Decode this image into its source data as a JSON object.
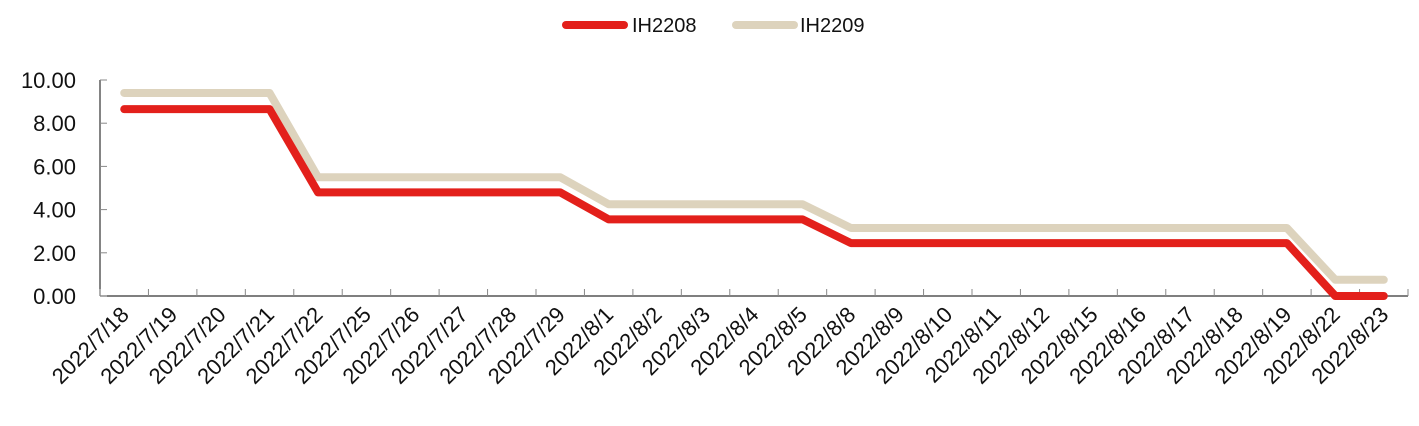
{
  "chart_data": {
    "type": "line",
    "title": "",
    "xlabel": "",
    "ylabel": "",
    "ylim": [
      0,
      10
    ],
    "yticks": [
      "0.00",
      "2.00",
      "4.00",
      "6.00",
      "8.00",
      "10.00"
    ],
    "grid": false,
    "legend_position": "top-center",
    "categories": [
      "2022/7/18",
      "2022/7/19",
      "2022/7/20",
      "2022/7/21",
      "2022/7/22",
      "2022/7/25",
      "2022/7/26",
      "2022/7/27",
      "2022/7/28",
      "2022/7/29",
      "2022/8/1",
      "2022/8/2",
      "2022/8/3",
      "2022/8/4",
      "2022/8/5",
      "2022/8/8",
      "2022/8/9",
      "2022/8/10",
      "2022/8/11",
      "2022/8/12",
      "2022/8/15",
      "2022/8/16",
      "2022/8/17",
      "2022/8/18",
      "2022/8/19",
      "2022/8/22",
      "2022/8/23"
    ],
    "series": [
      {
        "name": "IH2208",
        "color": "#e3201b",
        "values": [
          8.65,
          8.65,
          8.65,
          8.65,
          4.8,
          4.8,
          4.8,
          4.8,
          4.8,
          4.8,
          3.55,
          3.55,
          3.55,
          3.55,
          3.55,
          2.45,
          2.45,
          2.45,
          2.45,
          2.45,
          2.45,
          2.45,
          2.45,
          2.45,
          2.45,
          0,
          0
        ]
      },
      {
        "name": "IH2209",
        "color": "#ddd3bd",
        "values": [
          9.4,
          9.4,
          9.4,
          9.4,
          5.5,
          5.5,
          5.5,
          5.5,
          5.5,
          5.5,
          4.25,
          4.25,
          4.25,
          4.25,
          4.25,
          3.15,
          3.15,
          3.15,
          3.15,
          3.15,
          3.15,
          3.15,
          3.15,
          3.15,
          3.15,
          0.75,
          0.75
        ]
      }
    ]
  }
}
